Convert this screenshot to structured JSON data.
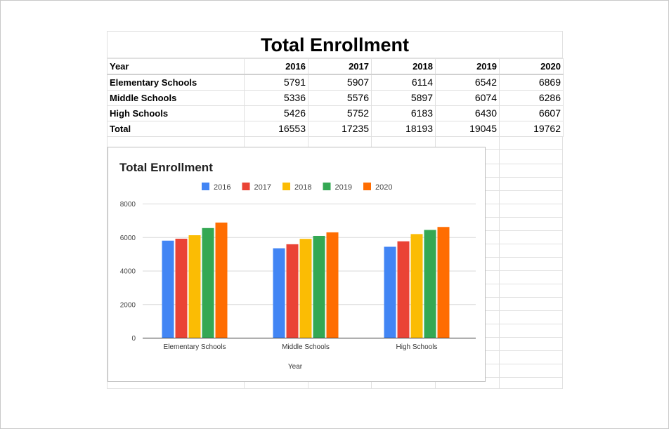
{
  "sheet": {
    "title": "Total Enrollment",
    "header_label": "Year",
    "years": [
      "2016",
      "2017",
      "2018",
      "2019",
      "2020"
    ],
    "rows": [
      {
        "label": "Elementary Schools",
        "values": [
          "5791",
          "5907",
          "6114",
          "6542",
          "6869"
        ]
      },
      {
        "label": "Middle Schools",
        "values": [
          "5336",
          "5576",
          "5897",
          "6074",
          "6286"
        ]
      },
      {
        "label": "High Schools",
        "values": [
          "5426",
          "5752",
          "6183",
          "6430",
          "6607"
        ]
      },
      {
        "label": "Total",
        "values": [
          "16553",
          "17235",
          "18193",
          "19045",
          "19762"
        ]
      }
    ]
  },
  "chart_data": {
    "type": "bar",
    "title": "Total Enrollment",
    "xlabel": "Year",
    "ylabel": "",
    "categories": [
      "Elementary Schools",
      "Middle Schools",
      "High Schools"
    ],
    "series": [
      {
        "name": "2016",
        "color": "#4285f4",
        "values": [
          5791,
          5336,
          5426
        ]
      },
      {
        "name": "2017",
        "color": "#ea4335",
        "values": [
          5907,
          5576,
          5752
        ]
      },
      {
        "name": "2018",
        "color": "#fbbc04",
        "values": [
          6114,
          5897,
          6183
        ]
      },
      {
        "name": "2019",
        "color": "#34a853",
        "values": [
          6542,
          6074,
          6430
        ]
      },
      {
        "name": "2020",
        "color": "#ff6d01",
        "values": [
          6869,
          6286,
          6607
        ]
      }
    ],
    "ylim": [
      0,
      8000
    ],
    "yticks": [
      "0",
      "2000",
      "4000",
      "6000",
      "8000"
    ],
    "grid": true,
    "legend_position": "top"
  }
}
